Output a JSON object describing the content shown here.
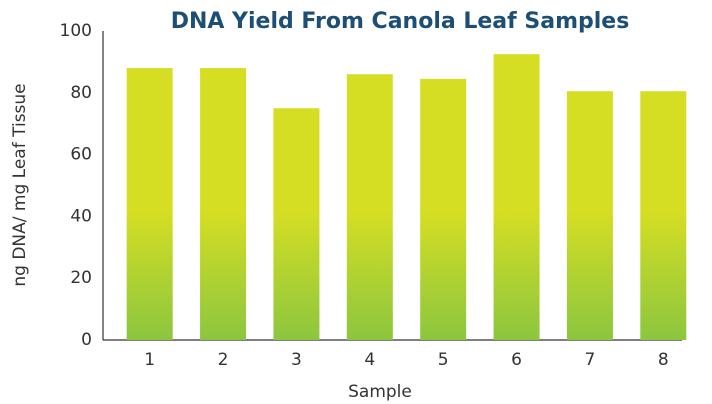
{
  "chart_data": {
    "type": "bar",
    "title": "DNA Yield From Canola Leaf Samples",
    "x_label": "Sample",
    "y_label": "ng DNA/ mg Leaf Tissue",
    "categories": [
      "1",
      "2",
      "3",
      "4",
      "5",
      "6",
      "7",
      "8"
    ],
    "values": [
      88,
      88,
      75,
      86,
      84.5,
      92.5,
      80.5,
      80.5
    ],
    "color_top": "#d6de23",
    "color_bottom": "#8cc63f",
    "ylim": [
      0,
      100
    ],
    "yticks": [
      0,
      20,
      40,
      60,
      80,
      100
    ],
    "grid": false
  }
}
